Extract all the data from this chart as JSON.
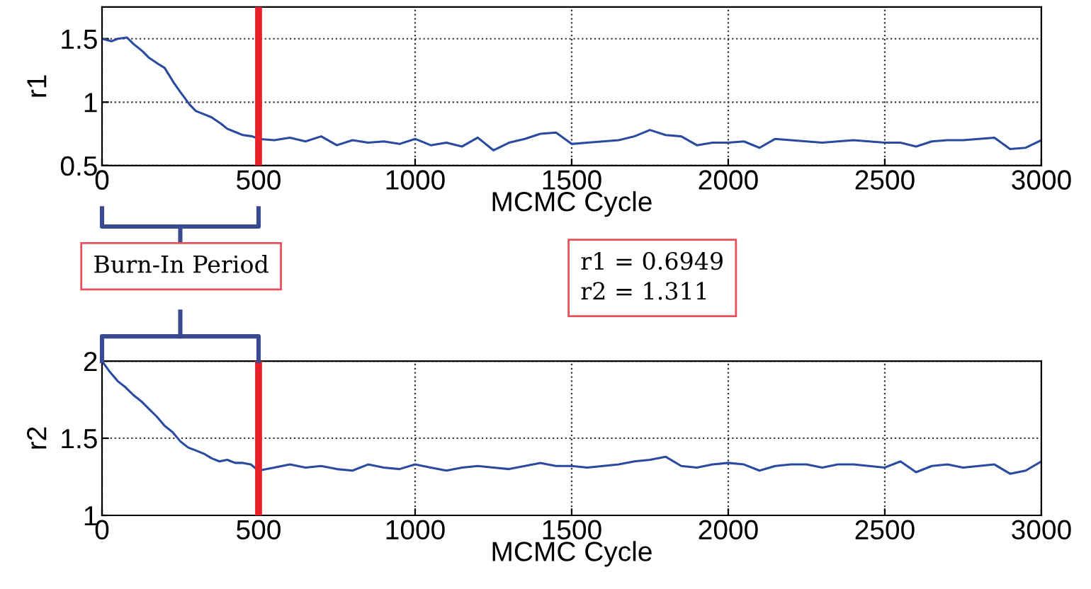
{
  "chart_data": [
    {
      "type": "line",
      "xlabel": "MCMC Cycle",
      "ylabel": "r1",
      "xlim": [
        0,
        3000
      ],
      "xticks": [
        0,
        500,
        1000,
        1500,
        2000,
        2500,
        3000
      ],
      "ylim": [
        0.5,
        1.75
      ],
      "yticks": [
        0.5,
        1,
        1.5
      ],
      "grid": true,
      "line_style": "solid",
      "marker": "none",
      "x": [
        0,
        30,
        50,
        80,
        100,
        130,
        150,
        180,
        200,
        230,
        250,
        280,
        300,
        330,
        350,
        380,
        400,
        430,
        450,
        480,
        500,
        550,
        600,
        650,
        700,
        750,
        800,
        850,
        900,
        950,
        1000,
        1050,
        1100,
        1150,
        1200,
        1250,
        1300,
        1350,
        1400,
        1450,
        1500,
        1550,
        1600,
        1650,
        1700,
        1750,
        1800,
        1850,
        1900,
        1950,
        2000,
        2050,
        2100,
        2150,
        2200,
        2250,
        2300,
        2350,
        2400,
        2450,
        2500,
        2550,
        2600,
        2650,
        2700,
        2750,
        2800,
        2850,
        2900,
        2950,
        3000
      ],
      "series": [
        {
          "color": "#2a4aa0",
          "values": [
            1.5,
            1.48,
            1.5,
            1.51,
            1.46,
            1.4,
            1.35,
            1.3,
            1.27,
            1.15,
            1.08,
            0.98,
            0.93,
            0.9,
            0.88,
            0.83,
            0.79,
            0.76,
            0.74,
            0.73,
            0.71,
            0.7,
            0.72,
            0.69,
            0.73,
            0.66,
            0.7,
            0.68,
            0.69,
            0.67,
            0.71,
            0.66,
            0.68,
            0.65,
            0.72,
            0.62,
            0.68,
            0.71,
            0.75,
            0.76,
            0.67,
            0.68,
            0.69,
            0.7,
            0.73,
            0.78,
            0.74,
            0.73,
            0.66,
            0.68,
            0.68,
            0.69,
            0.64,
            0.71,
            0.7,
            0.69,
            0.68,
            0.69,
            0.7,
            0.69,
            0.68,
            0.68,
            0.65,
            0.69,
            0.7,
            0.7,
            0.71,
            0.72,
            0.63,
            0.64,
            0.7
          ]
        }
      ],
      "ref_lines": [
        {
          "axis": "x",
          "value": 500,
          "label": null,
          "color": "#e8202a"
        }
      ],
      "annotations": [
        "Burn-In Period"
      ]
    },
    {
      "type": "line",
      "xlabel": "MCMC Cycle",
      "ylabel": "r2",
      "xlim": [
        0,
        3000
      ],
      "xticks": [
        0,
        500,
        1000,
        1500,
        2000,
        2500,
        3000
      ],
      "ylim": [
        1,
        2
      ],
      "yticks": [
        1,
        1.5,
        2
      ],
      "grid": true,
      "line_style": "solid",
      "marker": "none",
      "x": [
        0,
        25,
        50,
        75,
        100,
        125,
        150,
        175,
        200,
        225,
        250,
        275,
        300,
        325,
        350,
        375,
        400,
        425,
        450,
        475,
        500,
        550,
        600,
        650,
        700,
        750,
        800,
        850,
        900,
        950,
        1000,
        1050,
        1100,
        1150,
        1200,
        1250,
        1300,
        1350,
        1400,
        1450,
        1500,
        1550,
        1600,
        1650,
        1700,
        1750,
        1800,
        1850,
        1900,
        1950,
        2000,
        2050,
        2100,
        2150,
        2200,
        2250,
        2300,
        2350,
        2400,
        2450,
        2500,
        2550,
        2600,
        2650,
        2700,
        2750,
        2800,
        2850,
        2900,
        2950,
        3000
      ],
      "series": [
        {
          "color": "#2a4aa0",
          "values": [
            2.0,
            1.93,
            1.87,
            1.83,
            1.78,
            1.74,
            1.69,
            1.64,
            1.58,
            1.54,
            1.48,
            1.44,
            1.42,
            1.4,
            1.37,
            1.35,
            1.36,
            1.34,
            1.34,
            1.33,
            1.29,
            1.31,
            1.33,
            1.31,
            1.32,
            1.3,
            1.29,
            1.33,
            1.31,
            1.3,
            1.33,
            1.31,
            1.29,
            1.31,
            1.32,
            1.31,
            1.3,
            1.32,
            1.34,
            1.32,
            1.32,
            1.31,
            1.32,
            1.33,
            1.35,
            1.36,
            1.38,
            1.32,
            1.31,
            1.33,
            1.34,
            1.33,
            1.29,
            1.32,
            1.33,
            1.33,
            1.31,
            1.33,
            1.33,
            1.32,
            1.31,
            1.35,
            1.28,
            1.32,
            1.33,
            1.31,
            1.32,
            1.33,
            1.27,
            1.29,
            1.35
          ]
        }
      ],
      "ref_lines": [
        {
          "axis": "x",
          "value": 500,
          "label": null,
          "color": "#e8202a"
        }
      ],
      "annotations": [
        "r1 = 0.6949\nr2 = 1.311"
      ]
    }
  ]
}
